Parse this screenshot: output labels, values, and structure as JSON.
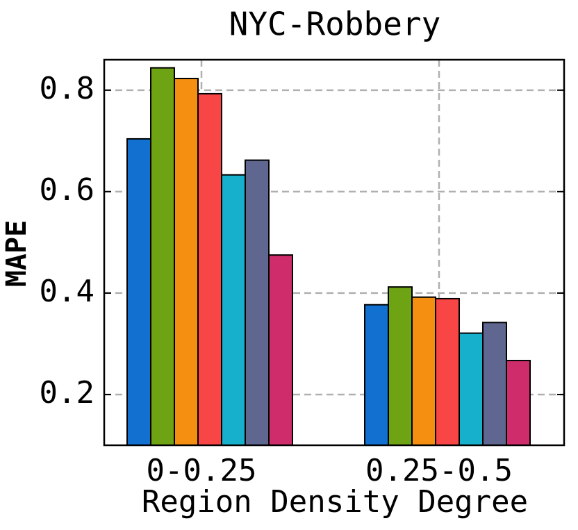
{
  "chart_data": {
    "type": "bar",
    "title": "NYC-Robbery",
    "x_label": "Region Density Degree",
    "y_label": "MAPE",
    "categories": [
      "0-0.25",
      "0.25-0.5"
    ],
    "series": [
      {
        "color": "#1170d0",
        "values": [
          0.704,
          0.377
        ]
      },
      {
        "color": "#6ea314",
        "values": [
          0.844,
          0.412
        ]
      },
      {
        "color": "#f58f12",
        "values": [
          0.823,
          0.392
        ]
      },
      {
        "color": "#f84545",
        "values": [
          0.793,
          0.389
        ]
      },
      {
        "color": "#17b0cc",
        "values": [
          0.633,
          0.321
        ]
      },
      {
        "color": "#5f6690",
        "values": [
          0.662,
          0.342
        ]
      },
      {
        "color": "#cf2c6c",
        "values": [
          0.475,
          0.267
        ]
      }
    ],
    "ylim": [
      0.1,
      0.86
    ],
    "yticks": [
      0.2,
      0.4,
      0.6,
      0.8
    ],
    "grid": true
  }
}
